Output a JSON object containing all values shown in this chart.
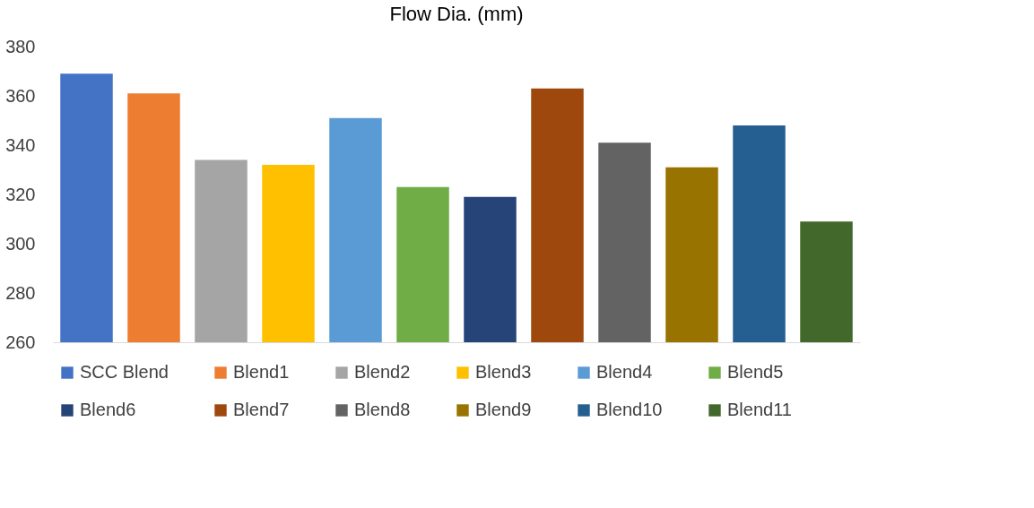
{
  "chart_data": {
    "type": "bar",
    "title": "Flow Dia. (mm)",
    "categories": [
      null
    ],
    "series": [
      {
        "name": "SCC Blend",
        "color": "#4472c4",
        "values": [
          369
        ]
      },
      {
        "name": "Blend1",
        "color": "#ed7d31",
        "values": [
          361
        ]
      },
      {
        "name": "Blend2",
        "color": "#a5a5a5",
        "values": [
          334
        ]
      },
      {
        "name": "Blend3",
        "color": "#ffc000",
        "values": [
          332
        ]
      },
      {
        "name": "Blend4",
        "color": "#5b9bd5",
        "values": [
          351
        ]
      },
      {
        "name": "Blend5",
        "color": "#70ad47",
        "values": [
          323
        ]
      },
      {
        "name": "Blend6",
        "color": "#264478",
        "values": [
          319
        ]
      },
      {
        "name": "Blend7",
        "color": "#9e480e",
        "values": [
          363
        ]
      },
      {
        "name": "Blend8",
        "color": "#636363",
        "values": [
          341
        ]
      },
      {
        "name": "Blend9",
        "color": "#997300",
        "values": [
          331
        ]
      },
      {
        "name": "Blend10",
        "color": "#255e91",
        "values": [
          348
        ]
      },
      {
        "name": "Blend11",
        "color": "#43682b",
        "values": [
          309
        ]
      }
    ],
    "ylim": [
      260,
      380
    ],
    "yticks": [
      260,
      280,
      300,
      320,
      340,
      360,
      380
    ],
    "grid": false,
    "legend": "bottom",
    "tick_labels": "y"
  }
}
